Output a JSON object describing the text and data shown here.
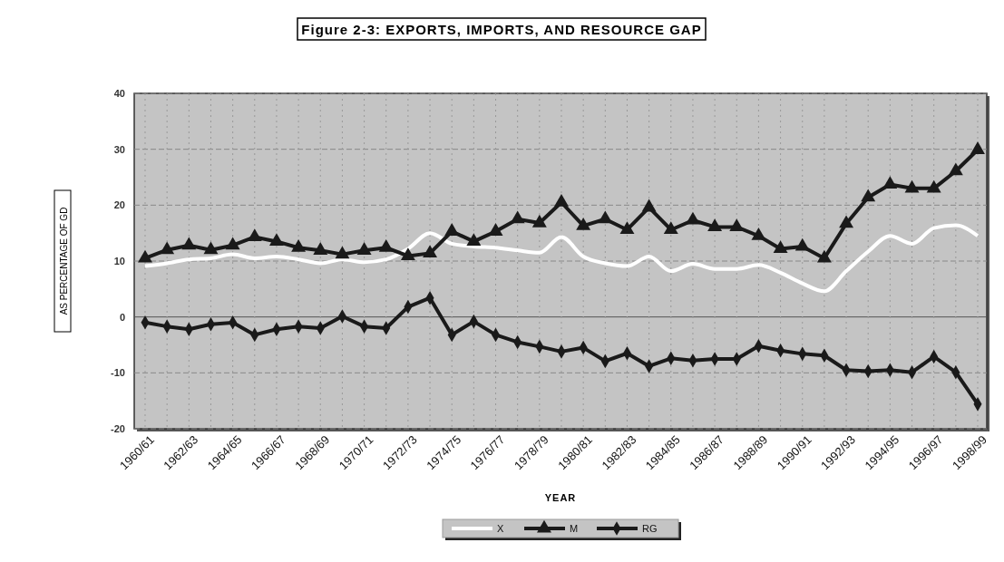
{
  "chart_data": {
    "type": "line",
    "title": "Figure 2-3: EXPORTS, IMPORTS, AND RESOURCE GAP",
    "xlabel": "YEAR",
    "ylabel": "AS PERCENTAGE OF GD",
    "categories": [
      "1960/61",
      null,
      "1962/63",
      null,
      "1964/65",
      null,
      "1966/67",
      null,
      "1968/69",
      null,
      "1970/71",
      null,
      "1972/73",
      null,
      "1974/75",
      null,
      "1976/77",
      null,
      "1978/79",
      null,
      "1980/81",
      null,
      "1982/83",
      null,
      "1984/85",
      null,
      "1986/87",
      null,
      "1988/89",
      null,
      "1990/91",
      null,
      "1992/93",
      null,
      "1994/95",
      null,
      "1996/97",
      null,
      "1998/99"
    ],
    "series": [
      {
        "name": "X",
        "color": "#ffffff",
        "marker": "none",
        "values": [
          9.1,
          9.6,
          10.3,
          10.5,
          11.2,
          10.5,
          10.8,
          10.3,
          9.6,
          10.3,
          9.8,
          10.3,
          12.2,
          15.0,
          13.1,
          12.6,
          12.4,
          11.9,
          11.5,
          14.3,
          10.8,
          9.6,
          9.1,
          10.8,
          8.2,
          9.5,
          8.6,
          8.6,
          9.3,
          7.9,
          6.0,
          4.6,
          8.2,
          11.7,
          14.5,
          13.1,
          15.9,
          16.4,
          14.5
        ]
      },
      {
        "name": "M",
        "color": "#1a1a1a",
        "marker": "triangle",
        "values": [
          10.5,
          12.0,
          12.8,
          12.0,
          12.8,
          14.3,
          13.5,
          12.4,
          11.9,
          11.2,
          11.9,
          12.4,
          10.9,
          11.4,
          15.3,
          13.5,
          15.3,
          17.5,
          16.8,
          20.5,
          16.3,
          17.5,
          15.6,
          19.6,
          15.6,
          17.3,
          16.1,
          16.1,
          14.5,
          12.2,
          12.6,
          10.5,
          16.7,
          21.4,
          23.7,
          23.0,
          23.0,
          26.1,
          29.9
        ]
      },
      {
        "name": "RG",
        "color": "#1a1a1a",
        "marker": "diamond",
        "values": [
          -1.0,
          -1.7,
          -2.2,
          -1.3,
          -1.0,
          -3.2,
          -2.2,
          -1.7,
          -2.0,
          0.1,
          -1.7,
          -2.0,
          1.8,
          3.4,
          -3.2,
          -0.8,
          -3.2,
          -4.5,
          -5.3,
          -6.2,
          -5.5,
          -7.9,
          -6.5,
          -8.8,
          -7.4,
          -7.8,
          -7.5,
          -7.5,
          -5.2,
          -6.0,
          -6.6,
          -6.9,
          -9.5,
          -9.7,
          -9.5,
          -9.9,
          -7.1,
          -9.9,
          -15.6
        ]
      }
    ],
    "ylim": [
      -20,
      40
    ],
    "yticks": [
      -20,
      -10,
      0,
      10,
      20,
      30,
      40
    ],
    "grid": true,
    "legend": "bottom"
  }
}
